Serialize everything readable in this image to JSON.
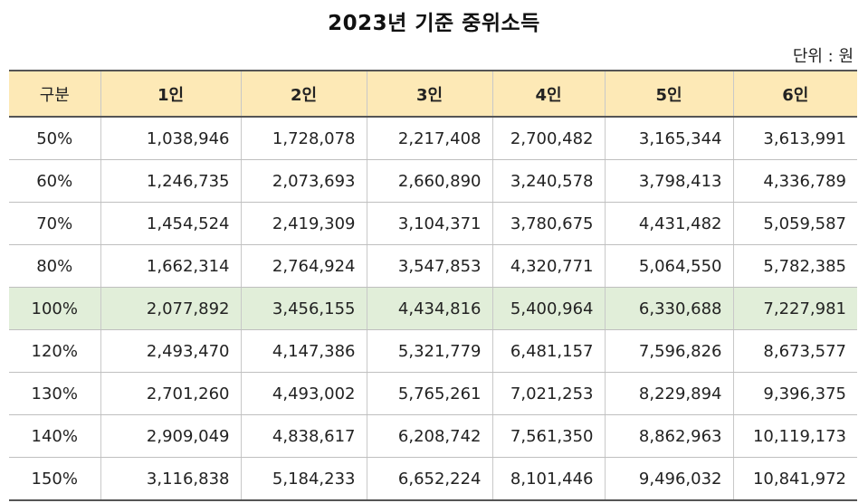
{
  "title": "2023년 기준 중위소득",
  "unit_label": "단위 : 원",
  "table": {
    "headers": [
      "구분",
      "1인",
      "2인",
      "3인",
      "4인",
      "5인",
      "6인"
    ],
    "rows": [
      [
        "50%",
        "1,038,946",
        "1,728,078",
        "2,217,408",
        "2,700,482",
        "3,165,344",
        "3,613,991"
      ],
      [
        "60%",
        "1,246,735",
        "2,073,693",
        "2,660,890",
        "3,240,578",
        "3,798,413",
        "4,336,789"
      ],
      [
        "70%",
        "1,454,524",
        "2,419,309",
        "3,104,371",
        "3,780,675",
        "4,431,482",
        "5,059,587"
      ],
      [
        "80%",
        "1,662,314",
        "2,764,924",
        "3,547,853",
        "4,320,771",
        "5,064,550",
        "5,782,385"
      ],
      [
        "100%",
        "2,077,892",
        "3,456,155",
        "4,434,816",
        "5,400,964",
        "6,330,688",
        "7,227,981"
      ],
      [
        "120%",
        "2,493,470",
        "4,147,386",
        "5,321,779",
        "6,481,157",
        "7,596,826",
        "8,673,577"
      ],
      [
        "130%",
        "2,701,260",
        "4,493,002",
        "5,765,261",
        "7,021,253",
        "8,229,894",
        "9,396,375"
      ],
      [
        "140%",
        "2,909,049",
        "4,838,617",
        "6,208,742",
        "7,561,350",
        "8,862,963",
        "10,119,173"
      ],
      [
        "150%",
        "3,116,838",
        "5,184,233",
        "6,652,224",
        "8,101,446",
        "9,496,032",
        "10,841,972"
      ]
    ],
    "highlight_row": "100%"
  },
  "colors": {
    "header_background": "#fde9b6",
    "highlight_background": "#e1eed9"
  }
}
